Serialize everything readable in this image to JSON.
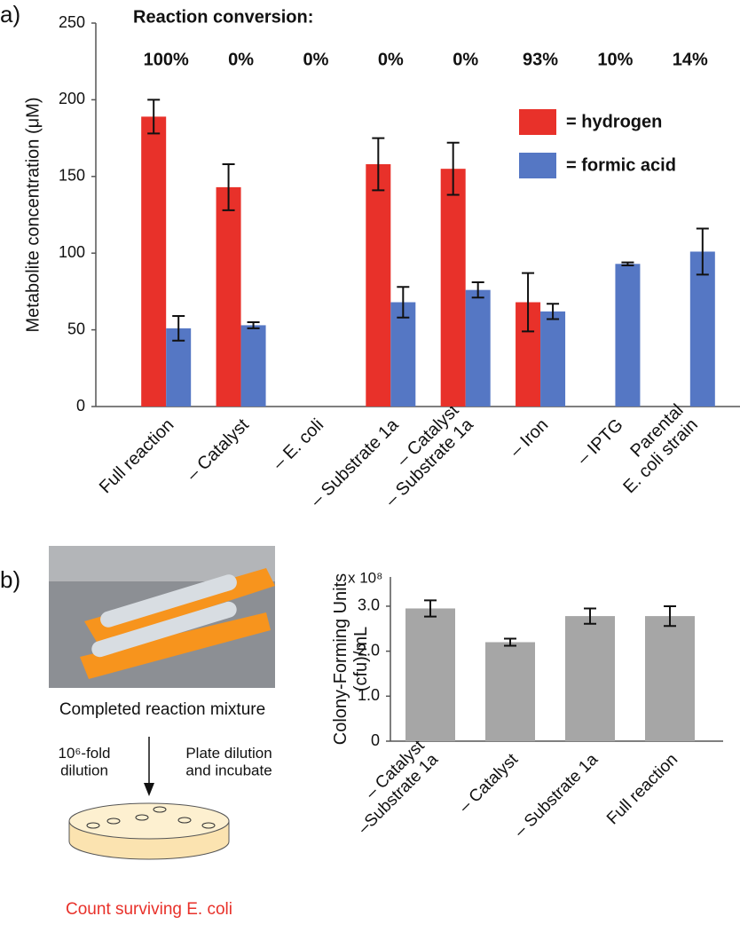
{
  "panel_labels": [
    "a)",
    "b)"
  ],
  "chart_data": [
    {
      "type": "bar",
      "annotation": "Reaction conversion:",
      "conversion_labels": [
        "100%",
        "0%",
        "0%",
        "0%",
        "0%",
        "93%",
        "10%",
        "14%"
      ],
      "categories": [
        "Full reaction",
        "– Catalyst",
        "– E. coli",
        "– Substrate 1a",
        "– Catalyst\n– Substrate 1a",
        "– Iron",
        "– IPTG",
        "Parental\nE. coli strain"
      ],
      "ylabel": "Metabolite concentration (μM)",
      "ylim": [
        0,
        250
      ],
      "yticks": [
        0,
        50,
        100,
        150,
        200,
        250
      ],
      "series": [
        {
          "name": "= hydrogen",
          "color": "#e8312a",
          "values": [
            189,
            143,
            null,
            158,
            155,
            68,
            null,
            null
          ],
          "errors": [
            11,
            15,
            null,
            17,
            17,
            19,
            null,
            null
          ]
        },
        {
          "name": "= formic acid",
          "color": "#5577c4",
          "values": [
            51,
            53,
            null,
            68,
            76,
            62,
            93,
            101
          ],
          "errors": [
            8,
            2,
            null,
            10,
            5,
            5,
            1,
            15
          ]
        }
      ],
      "legend": "upper right"
    },
    {
      "type": "bar",
      "ylabel": "Colony-Forming Units\n(cfu)/mL",
      "y_multiplier": "x 10⁸",
      "categories": [
        "– Catalyst\n–Substrate 1a",
        "– Catalyst",
        "– Substrate 1a",
        "Full reaction"
      ],
      "values": [
        2.95,
        2.2,
        2.78,
        2.78
      ],
      "errors": [
        0.18,
        0.08,
        0.17,
        0.22
      ],
      "color": "#a6a6a6",
      "ylim": [
        0,
        3.65
      ],
      "yticks": [
        0,
        {
          "value": 1,
          "label": "1.0"
        },
        {
          "value": 2,
          "label": "2.0"
        },
        {
          "value": 3,
          "label": "3.0"
        }
      ]
    }
  ],
  "diagram": {
    "photo_caption": "Completed reaction mixture",
    "left_step": "10⁶-fold\ndilution",
    "right_step": "Plate dilution\nand incubate",
    "result": "Count surviving E. coli"
  }
}
